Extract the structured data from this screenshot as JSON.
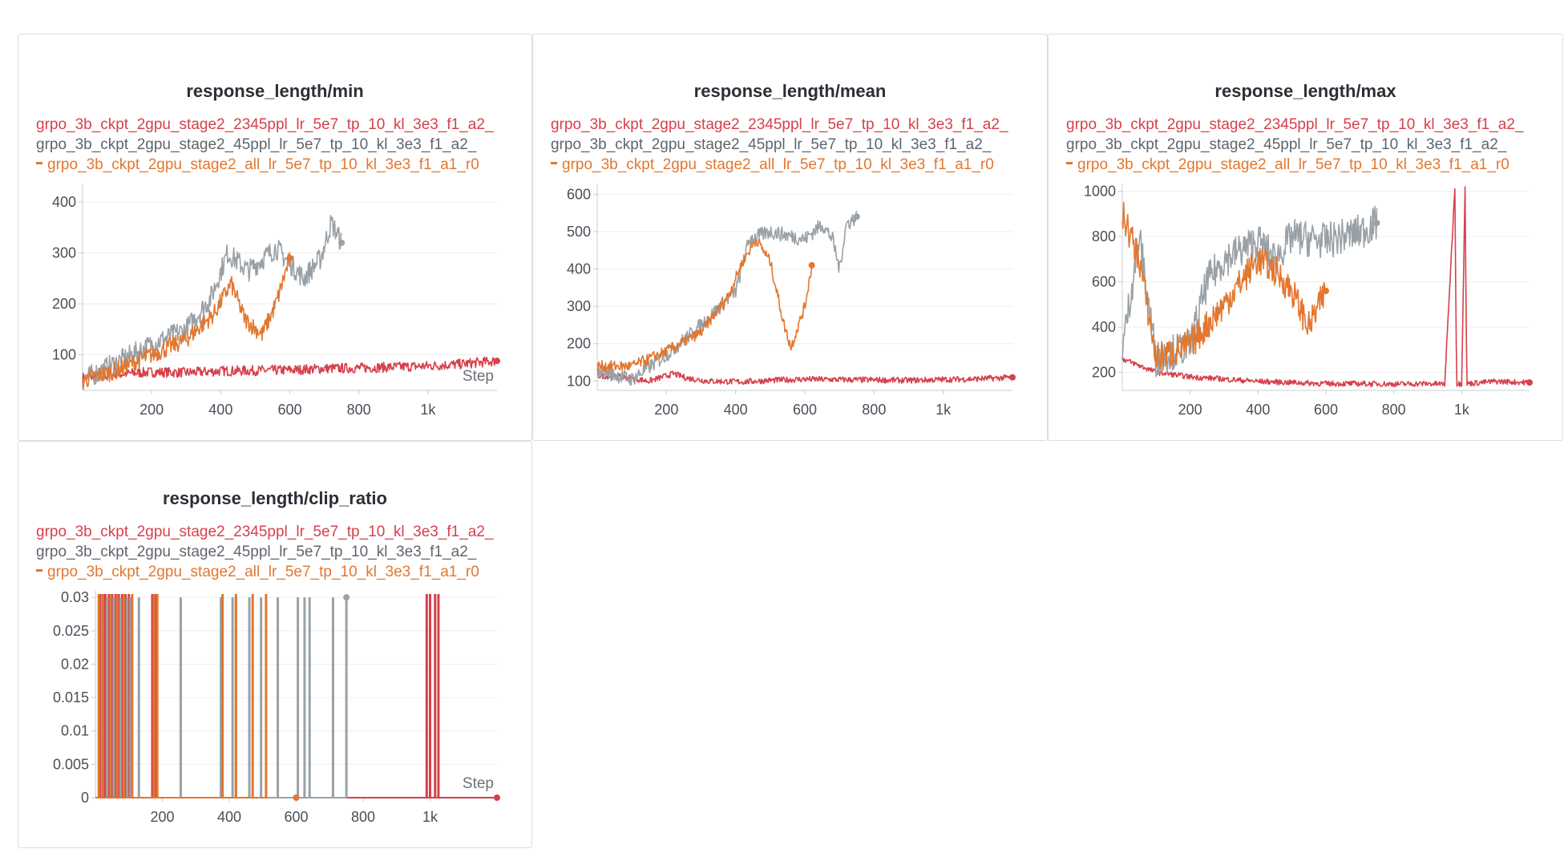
{
  "colors": {
    "red": "#d6404b",
    "gray": "#9aa1a6",
    "orange": "#e2772f",
    "grid": "#eceef1",
    "axis": "#c9ccd1"
  },
  "legend": [
    {
      "label": "grpo_3b_ckpt_2gpu_stage2_2345ppl_lr_5e7_tp_10_kl_3e3_f1_a2_",
      "color": "#d6404b",
      "marker": false
    },
    {
      "label": "grpo_3b_ckpt_2gpu_stage2_45ppl_lr_5e7_tp_10_kl_3e3_f1_a2_",
      "color": "#5f656d",
      "marker": false
    },
    {
      "label": "grpo_3b_ckpt_2gpu_stage2_all_lr_5e7_tp_10_kl_3e3_f1_a1_r0",
      "color": "#e2772f",
      "marker": true
    }
  ],
  "step_label": "Step",
  "chart_data": [
    {
      "id": "min",
      "type": "line",
      "title": "response_length/min",
      "x_ticks": [
        200,
        400,
        600,
        800,
        1000
      ],
      "x_tick_labels": [
        "200",
        "400",
        "600",
        "800",
        "1k"
      ],
      "xlim": [
        0,
        1200
      ],
      "y_ticks": [
        100,
        200,
        300,
        400
      ],
      "y_tick_labels": [
        "100",
        "200",
        "300",
        "400"
      ],
      "ylim": [
        30,
        430
      ],
      "series": [
        {
          "color": "red",
          "points": [
            [
              0,
              55
            ],
            [
              100,
              62
            ],
            [
              200,
              66
            ],
            [
              300,
              65
            ],
            [
              400,
              68
            ],
            [
              500,
              69
            ],
            [
              600,
              70
            ],
            [
              700,
              73
            ],
            [
              800,
              74
            ],
            [
              900,
              76
            ],
            [
              1000,
              78
            ],
            [
              1100,
              82
            ],
            [
              1200,
              88
            ]
          ],
          "noise": 10
        },
        {
          "color": "gray",
          "points": [
            [
              0,
              50
            ],
            [
              100,
              85
            ],
            [
              200,
              120
            ],
            [
              300,
              150
            ],
            [
              370,
              210
            ],
            [
              420,
              300
            ],
            [
              480,
              265
            ],
            [
              560,
              310
            ],
            [
              640,
              250
            ],
            [
              690,
              290
            ],
            [
              720,
              360
            ],
            [
              750,
              320
            ]
          ],
          "noise": 22
        },
        {
          "color": "orange",
          "points": [
            [
              0,
              50
            ],
            [
              100,
              70
            ],
            [
              200,
              100
            ],
            [
              300,
              130
            ],
            [
              380,
              180
            ],
            [
              430,
              240
            ],
            [
              470,
              170
            ],
            [
              520,
              140
            ],
            [
              560,
              200
            ],
            [
              600,
              290
            ]
          ],
          "noise": 18
        }
      ]
    },
    {
      "id": "mean",
      "type": "line",
      "title": "response_length/mean",
      "x_ticks": [
        200,
        400,
        600,
        800,
        1000
      ],
      "x_tick_labels": [
        "200",
        "400",
        "600",
        "800",
        "1k"
      ],
      "xlim": [
        0,
        1200
      ],
      "y_ticks": [
        100,
        200,
        300,
        400,
        500,
        600
      ],
      "y_tick_labels": [
        "100",
        "200",
        "300",
        "400",
        "500",
        "600"
      ],
      "ylim": [
        75,
        620
      ],
      "series": [
        {
          "color": "red",
          "points": [
            [
              0,
              115
            ],
            [
              80,
              110
            ],
            [
              150,
              100
            ],
            [
              220,
              120
            ],
            [
              260,
              108
            ],
            [
              320,
              100
            ],
            [
              420,
              98
            ],
            [
              500,
              102
            ],
            [
              600,
              105
            ],
            [
              700,
              104
            ],
            [
              800,
              103
            ],
            [
              900,
              102
            ],
            [
              1000,
              104
            ],
            [
              1100,
              106
            ],
            [
              1200,
              110
            ]
          ],
          "noise": 8
        },
        {
          "color": "gray",
          "points": [
            [
              0,
              130
            ],
            [
              100,
              105
            ],
            [
              200,
              170
            ],
            [
              300,
              250
            ],
            [
              400,
              340
            ],
            [
              440,
              480
            ],
            [
              500,
              500
            ],
            [
              600,
              480
            ],
            [
              650,
              520
            ],
            [
              680,
              480
            ],
            [
              700,
              400
            ],
            [
              720,
              520
            ],
            [
              750,
              540
            ]
          ],
          "noise": 20
        },
        {
          "color": "orange",
          "points": [
            [
              0,
              140
            ],
            [
              100,
              140
            ],
            [
              200,
              180
            ],
            [
              300,
              230
            ],
            [
              380,
              330
            ],
            [
              420,
              420
            ],
            [
              460,
              480
            ],
            [
              500,
              420
            ],
            [
              540,
              250
            ],
            [
              560,
              190
            ],
            [
              600,
              300
            ],
            [
              620,
              410
            ]
          ],
          "noise": 15
        }
      ]
    },
    {
      "id": "max",
      "type": "line",
      "title": "response_length/max",
      "x_ticks": [
        200,
        400,
        600,
        800,
        1000
      ],
      "x_tick_labels": [
        "200",
        "400",
        "600",
        "800",
        "1k"
      ],
      "xlim": [
        0,
        1200
      ],
      "y_ticks": [
        200,
        400,
        600,
        800,
        1000
      ],
      "y_tick_labels": [
        "200",
        "400",
        "600",
        "800",
        "1000"
      ],
      "ylim": [
        120,
        1020
      ],
      "series": [
        {
          "color": "red",
          "points": [
            [
              0,
              260
            ],
            [
              100,
              200
            ],
            [
              200,
              180
            ],
            [
              300,
              170
            ],
            [
              400,
              160
            ],
            [
              500,
              155
            ],
            [
              600,
              150
            ],
            [
              700,
              150
            ],
            [
              800,
              148
            ],
            [
              900,
              150
            ],
            [
              950,
              148
            ],
            [
              980,
              1020
            ],
            [
              985,
              150
            ],
            [
              1000,
              150
            ],
            [
              1010,
              1020
            ],
            [
              1015,
              150
            ],
            [
              1100,
              160
            ],
            [
              1200,
              155
            ]
          ],
          "noise": 12
        },
        {
          "color": "gray",
          "points": [
            [
              0,
              300
            ],
            [
              50,
              800
            ],
            [
              100,
              260
            ],
            [
              200,
              320
            ],
            [
              250,
              600
            ],
            [
              300,
              700
            ],
            [
              400,
              780
            ],
            [
              450,
              700
            ],
            [
              500,
              800
            ],
            [
              600,
              780
            ],
            [
              700,
              820
            ],
            [
              750,
              860
            ]
          ],
          "noise": 80
        },
        {
          "color": "orange",
          "points": [
            [
              0,
              900
            ],
            [
              50,
              700
            ],
            [
              100,
              260
            ],
            [
              200,
              320
            ],
            [
              300,
              500
            ],
            [
              400,
              700
            ],
            [
              450,
              650
            ],
            [
              500,
              560
            ],
            [
              550,
              400
            ],
            [
              600,
              560
            ]
          ],
          "noise": 70
        }
      ]
    },
    {
      "id": "clip",
      "type": "line",
      "title": "response_length/clip_ratio",
      "x_ticks": [
        200,
        400,
        600,
        800,
        1000
      ],
      "x_tick_labels": [
        "200",
        "400",
        "600",
        "800",
        "1k"
      ],
      "xlim": [
        0,
        1200
      ],
      "y_ticks": [
        0,
        0.005,
        0.01,
        0.015,
        0.02,
        0.025,
        0.03
      ],
      "y_tick_labels": [
        "0",
        "0.005",
        "0.01",
        "0.015",
        "0.02",
        "0.025",
        "0.03"
      ],
      "ylim": [
        0,
        0.0305
      ],
      "series": [
        {
          "color": "red",
          "spikes": [
            15,
            25,
            30,
            40,
            50,
            60,
            70,
            80,
            90,
            100,
            170,
            180,
            990,
            1000,
            1015,
            1025
          ],
          "spike_value": 0.0305,
          "baseline": 0
        },
        {
          "color": "gray",
          "spikes": [
            20,
            35,
            55,
            75,
            95,
            105,
            130,
            255,
            375,
            410,
            420,
            460,
            495,
            545,
            605,
            625,
            640,
            710,
            750
          ],
          "spike_value": 0.03,
          "baseline": 0
        },
        {
          "color": "orange",
          "spikes": [
            10,
            22,
            45,
            65,
            85,
            110,
            175,
            185,
            380,
            420,
            470,
            510
          ],
          "spike_value": 0.0305,
          "baseline": 0
        }
      ]
    }
  ]
}
